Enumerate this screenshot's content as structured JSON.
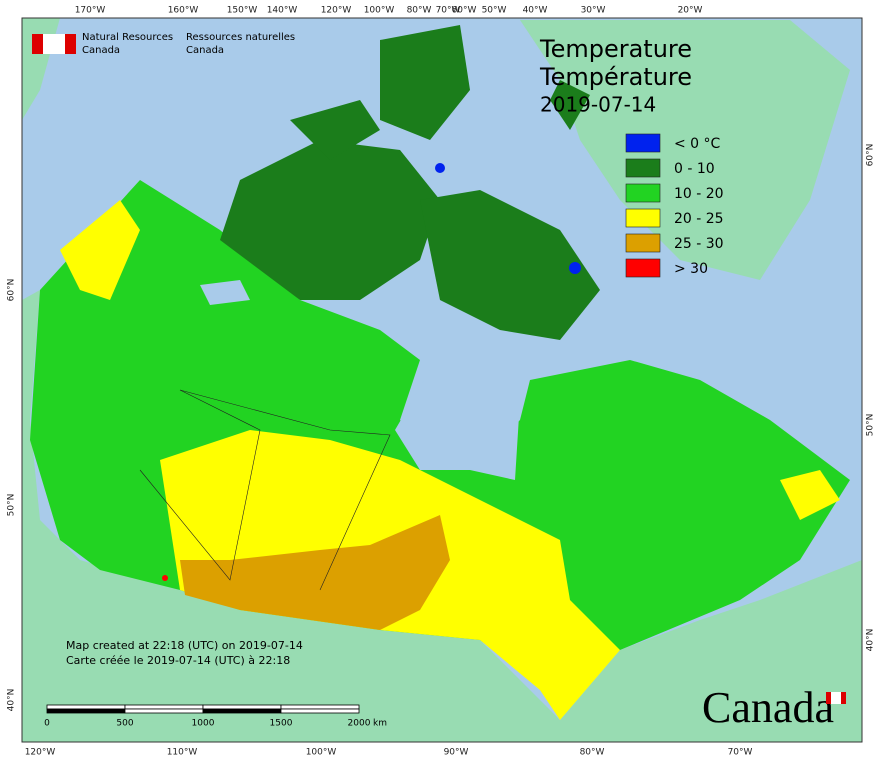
{
  "header": {
    "agency_en": [
      "Natural Resources",
      "Canada"
    ],
    "agency_fr": [
      "Ressources naturelles",
      "Canada"
    ]
  },
  "title": {
    "en": "Temperature",
    "fr": "Température",
    "date": "2019-07-14"
  },
  "legend": [
    {
      "label": "< 0 °C",
      "color": "#0022ee"
    },
    {
      "label": "0 - 10",
      "color": "#1b7d1b"
    },
    {
      "label": "10 - 20",
      "color": "#22d322"
    },
    {
      "label": "20 - 25",
      "color": "#ffff00"
    },
    {
      "label": "25 - 30",
      "color": "#dca000"
    },
    {
      "label": "> 30",
      "color": "#ff0000"
    }
  ],
  "graticule": {
    "top": [
      "170°W",
      "160°W",
      "150°W",
      "140°W",
      "120°W",
      "100°W",
      "80°W",
      "70°W",
      "60°W",
      "50°W",
      "40°W",
      "30°W",
      "20°W"
    ],
    "bottom": [
      "120°W",
      "110°W",
      "100°W",
      "90°W",
      "80°W",
      "70°W"
    ],
    "left": [
      "60°N",
      "50°N",
      "40°N"
    ],
    "right": [
      "60°N",
      "50°N",
      "40°N"
    ]
  },
  "notes": [
    "Map created at 22:18 (UTC) on 2019-07-14",
    "Carte créée le 2019-07-14 (UTC) à 22:18"
  ],
  "scale_bar": {
    "labels": [
      "0",
      "500",
      "1000",
      "1500",
      "2000"
    ],
    "unit": "km"
  },
  "wordmark": "Canada"
}
